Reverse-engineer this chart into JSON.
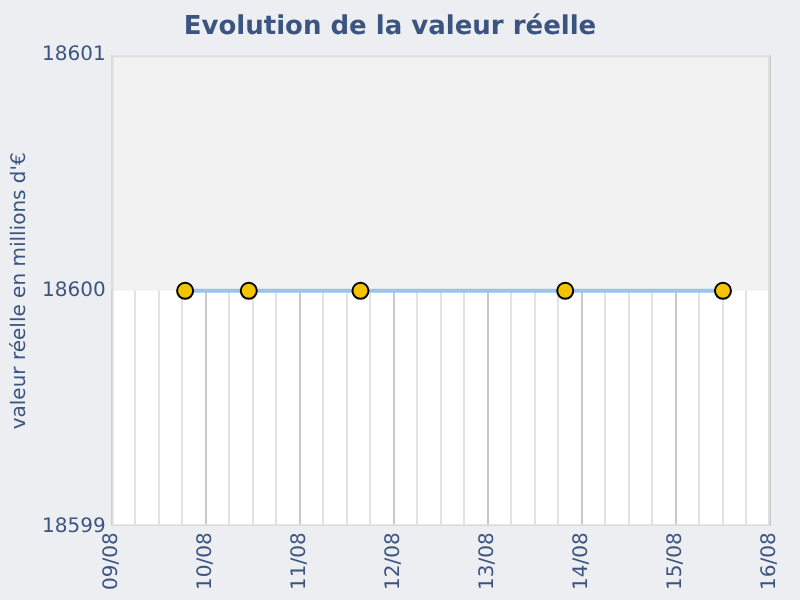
{
  "chart_data": {
    "type": "line",
    "title": "Evolution de la valeur réelle",
    "ylabel": "valeur réelle en millions d'€",
    "series": [
      {
        "color": "#99c4ee",
        "x": [
          "--08-09T18:45",
          "--08-10T11:00",
          "--08-11T15:30",
          "--08-13T19:45",
          "--08-15T12:00"
        ],
        "values": [
          18600,
          18600,
          18600,
          18600,
          18600
        ]
      }
    ],
    "xlim": [
      "--08-09",
      "--08-16"
    ],
    "xticks": [
      {
        "value": "--08-09",
        "label": "09/08"
      },
      {
        "value": "--08-09T06:00",
        "label": null
      },
      {
        "value": "--08-09T12:00",
        "label": null
      },
      {
        "value": "--08-09T18:00",
        "label": null
      },
      {
        "value": "--08-10",
        "label": "10/08"
      },
      {
        "value": "--08-10T06:00",
        "label": null
      },
      {
        "value": "--08-10T12:00",
        "label": null
      },
      {
        "value": "--08-10T18:00",
        "label": null
      },
      {
        "value": "--08-11",
        "label": "11/08"
      },
      {
        "value": "--08-11T06:00",
        "label": null
      },
      {
        "value": "--08-11T12:00",
        "label": null
      },
      {
        "value": "--08-11T18:00",
        "label": null
      },
      {
        "value": "--08-12",
        "label": "12/08"
      },
      {
        "value": "--08-12T06:00",
        "label": null
      },
      {
        "value": "--08-12T12:00",
        "label": null
      },
      {
        "value": "--08-12T18:00",
        "label": null
      },
      {
        "value": "--08-13",
        "label": "13/08"
      },
      {
        "value": "--08-13T06:00",
        "label": null
      },
      {
        "value": "--08-13T12:00",
        "label": null
      },
      {
        "value": "--08-13T18:00",
        "label": null
      },
      {
        "value": "--08-14",
        "label": "14/08"
      },
      {
        "value": "--08-14T06:00",
        "label": null
      },
      {
        "value": "--08-14T12:00",
        "label": null
      },
      {
        "value": "--08-14T18:00",
        "label": null
      },
      {
        "value": "--08-15",
        "label": "15/08"
      },
      {
        "value": "--08-15T06:00",
        "label": null
      },
      {
        "value": "--08-15T12:00",
        "label": null
      },
      {
        "value": "--08-15T18:00",
        "label": null
      },
      {
        "value": "--08-16",
        "label": "16/08"
      }
    ],
    "ylim": [
      18599,
      18601
    ],
    "yticks": [
      18599,
      18600,
      18601
    ],
    "bands": [
      {
        "axis": "y",
        "from": 18600,
        "to": 18601,
        "color": "#f2f2f2"
      }
    ],
    "grid": "x",
    "marker": "circle",
    "line_style": "solid"
  }
}
